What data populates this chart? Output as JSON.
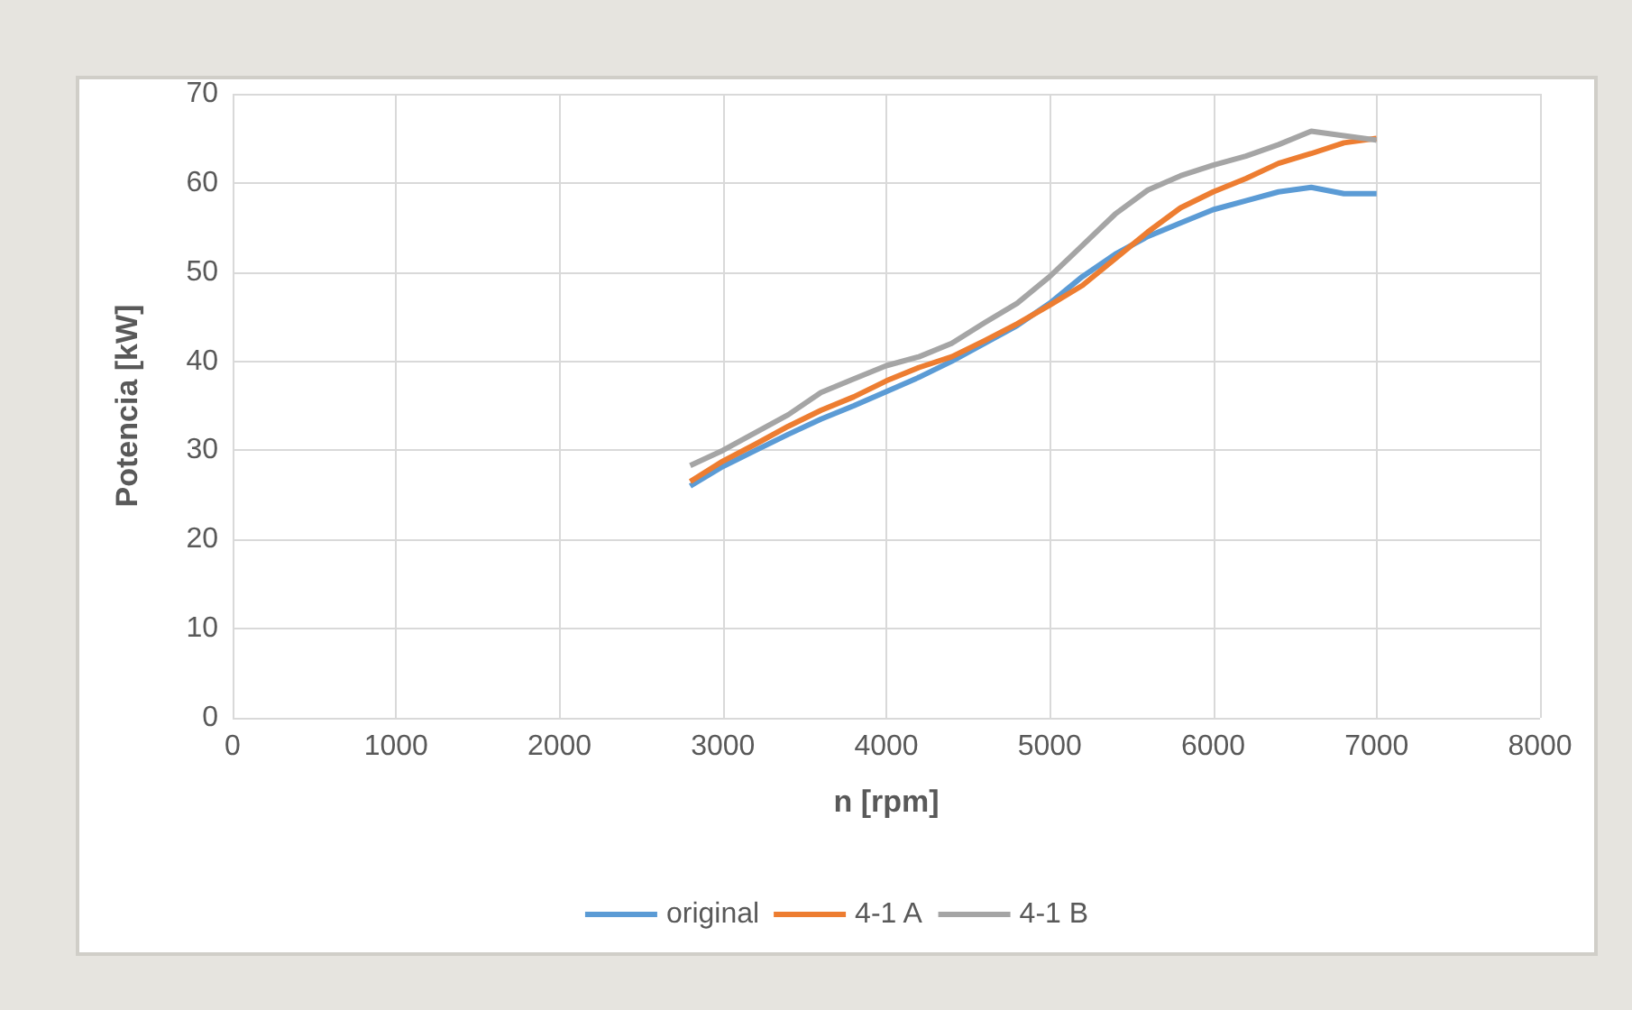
{
  "chart_data": {
    "type": "line",
    "xlabel": "n [rpm]",
    "ylabel": "Potencia [kW]",
    "x": [
      2800,
      3000,
      3200,
      3400,
      3600,
      3800,
      4000,
      4200,
      4400,
      4600,
      4800,
      5000,
      5200,
      5400,
      5600,
      5800,
      6000,
      6200,
      6400,
      6600,
      6800,
      7000
    ],
    "series": [
      {
        "name": "original",
        "color": "#5b9bd5",
        "values": [
          26,
          28.2,
          30,
          31.8,
          33.5,
          35,
          36.6,
          38.2,
          40,
          42,
          44,
          46.5,
          49.5,
          52,
          54,
          55.5,
          57,
          58,
          59,
          59.5,
          58.8,
          58.8
        ]
      },
      {
        "name": "4-1 A",
        "color": "#ed7d31",
        "values": [
          26.5,
          28.8,
          30.7,
          32.7,
          34.5,
          36,
          37.8,
          39.3,
          40.5,
          42.3,
          44.2,
          46.3,
          48.5,
          51.5,
          54.5,
          57.2,
          59,
          60.5,
          62.2,
          63.3,
          64.5,
          65
        ]
      },
      {
        "name": "4-1 B",
        "color": "#a5a5a5",
        "values": [
          28.3,
          30,
          32,
          34,
          36.5,
          38,
          39.5,
          40.5,
          42,
          44.3,
          46.5,
          49.5,
          53,
          56.5,
          59.2,
          60.8,
          62,
          63,
          64.3,
          65.8,
          65.3,
          64.8
        ]
      }
    ],
    "xlim": [
      0,
      8000
    ],
    "xticks": [
      0,
      1000,
      2000,
      3000,
      4000,
      5000,
      6000,
      7000,
      8000
    ],
    "ylim": [
      0,
      70
    ],
    "yticks": [
      0,
      10,
      20,
      30,
      40,
      50,
      60,
      70
    ],
    "grid": true,
    "legend": "bottom",
    "marker": "none",
    "line_style": "solid"
  }
}
